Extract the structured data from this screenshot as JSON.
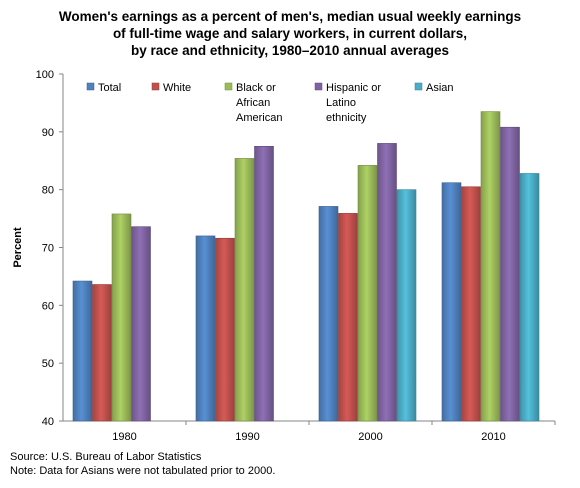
{
  "chart_data": {
    "type": "bar",
    "title_lines": [
      "Women's earnings as a percent of men's, median usual weekly earnings",
      "of full-time wage and salary workers, in current dollars,",
      "by race and ethnicity, 1980–2010 annual averages"
    ],
    "xlabel": "",
    "ylabel": "Percent",
    "ylim": [
      40,
      100
    ],
    "yticks": [
      "40",
      "50",
      "60",
      "70",
      "80",
      "90",
      "100"
    ],
    "categories": [
      "1980",
      "1990",
      "2000",
      "2010"
    ],
    "grid": false,
    "legend_position": "top",
    "series": [
      {
        "name": "Total",
        "legend_lines": [
          "Total"
        ],
        "color": "#4f81bd",
        "values": [
          64.2,
          72.0,
          77.1,
          81.2
        ]
      },
      {
        "name": "White",
        "legend_lines": [
          "White"
        ],
        "color": "#c0504d",
        "values": [
          63.6,
          71.6,
          75.9,
          80.5
        ]
      },
      {
        "name": "Black or African American",
        "legend_lines": [
          "Black or",
          "African",
          "American"
        ],
        "color": "#9bbb59",
        "values": [
          75.8,
          85.4,
          84.2,
          93.5
        ]
      },
      {
        "name": "Hispanic or Latino ethnicity",
        "legend_lines": [
          "Hispanic or",
          "Latino",
          "ethnicity"
        ],
        "color": "#8064a2",
        "values": [
          73.6,
          87.5,
          88.0,
          90.8
        ]
      },
      {
        "name": "Asian",
        "legend_lines": [
          "Asian"
        ],
        "color": "#4bacc6",
        "values": [
          null,
          null,
          80.0,
          82.8
        ]
      }
    ]
  },
  "source": "Source: U.S. Bureau of Labor Statistics",
  "note": "Note:  Data for Asians were not tabulated prior to 2000."
}
